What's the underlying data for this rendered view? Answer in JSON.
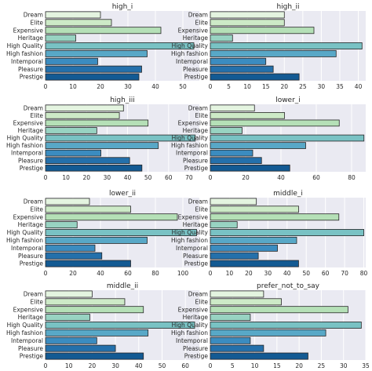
{
  "colors": [
    "#e4f4e0",
    "#cdeac7",
    "#b5e0b7",
    "#98d3c2",
    "#79c2c4",
    "#58a8c7",
    "#3b8cc0",
    "#2470ab",
    "#135a93"
  ],
  "chart_data": [
    {
      "type": "bar",
      "orientation": "horizontal",
      "title": "high_i",
      "categories": [
        "Dream",
        "Elite",
        "Expensive",
        "Heritage",
        "High Quality",
        "High fashion",
        "Intemporal",
        "Pleasure",
        "Prestige"
      ],
      "values": [
        20,
        24,
        42,
        11,
        54,
        37,
        19,
        35,
        34
      ],
      "xlim": [
        0,
        56
      ],
      "xticks": [
        0,
        10,
        20,
        30,
        40,
        50
      ]
    },
    {
      "type": "bar",
      "orientation": "horizontal",
      "title": "high_ii",
      "categories": [
        "Dream",
        "Elite",
        "Expensive",
        "Heritage",
        "High Quality",
        "High fashion",
        "Intemporal",
        "Pleasure",
        "Prestige"
      ],
      "values": [
        20,
        20,
        28,
        6,
        41,
        34,
        15,
        17,
        24
      ],
      "xlim": [
        0,
        42
      ],
      "xticks": [
        0,
        5,
        10,
        15,
        20,
        25,
        30,
        35,
        40
      ]
    },
    {
      "type": "bar",
      "orientation": "horizontal",
      "title": "high_iii",
      "categories": [
        "Dream",
        "Elite",
        "Expensive",
        "Heritage",
        "High Quality",
        "High fashion",
        "Intemporal",
        "Pleasure",
        "Prestige"
      ],
      "values": [
        38,
        36,
        50,
        25,
        73,
        55,
        27,
        41,
        47
      ],
      "xlim": [
        0,
        75
      ],
      "xticks": [
        0,
        10,
        20,
        30,
        40,
        50,
        60,
        70
      ]
    },
    {
      "type": "bar",
      "orientation": "horizontal",
      "title": "lower_i",
      "categories": [
        "Dream",
        "Elite",
        "Expensive",
        "Heritage",
        "High Quality",
        "High fashion",
        "Intemporal",
        "Pleasure",
        "Prestige"
      ],
      "values": [
        25,
        42,
        73,
        18,
        87,
        54,
        24,
        29,
        45
      ],
      "xlim": [
        0,
        88
      ],
      "xticks": [
        0,
        20,
        40,
        60,
        80
      ]
    },
    {
      "type": "bar",
      "orientation": "horizontal",
      "title": "lower_ii",
      "categories": [
        "Dream",
        "Elite",
        "Expensive",
        "Heritage",
        "High Quality",
        "High fashion",
        "Intemporal",
        "Pleasure",
        "Prestige"
      ],
      "values": [
        32,
        62,
        96,
        23,
        110,
        74,
        36,
        41,
        62
      ],
      "xlim": [
        0,
        112
      ],
      "xticks": [
        0,
        20,
        40,
        60,
        80,
        100
      ]
    },
    {
      "type": "bar",
      "orientation": "horizontal",
      "title": "middle_i",
      "categories": [
        "Dream",
        "Elite",
        "Expensive",
        "Heritage",
        "High Quality",
        "High fashion",
        "Intemporal",
        "Pleasure",
        "Prestige"
      ],
      "values": [
        24,
        46,
        67,
        14,
        80,
        45,
        35,
        25,
        46
      ],
      "xlim": [
        0,
        81
      ],
      "xticks": [
        0,
        10,
        20,
        30,
        40,
        50,
        60,
        70,
        80
      ]
    },
    {
      "type": "bar",
      "orientation": "horizontal",
      "title": "middle_ii",
      "categories": [
        "Dream",
        "Elite",
        "Expensive",
        "Heritage",
        "High Quality",
        "High fashion",
        "Intemporal",
        "Pleasure",
        "Prestige"
      ],
      "values": [
        20,
        34,
        42,
        19,
        64,
        44,
        22,
        30,
        42
      ],
      "xlim": [
        0,
        66
      ],
      "xticks": [
        0,
        10,
        20,
        30,
        40,
        50,
        60
      ]
    },
    {
      "type": "bar",
      "orientation": "horizontal",
      "title": "prefer_not_to_say",
      "categories": [
        "Dream",
        "Elite",
        "Expensive",
        "Heritage",
        "High Quality",
        "High fashion",
        "Intemporal",
        "Pleasure",
        "Prestige"
      ],
      "values": [
        12,
        16,
        31,
        9,
        34,
        26,
        9,
        12,
        22
      ],
      "xlim": [
        0,
        35
      ],
      "xticks": [
        0,
        5,
        10,
        15,
        20,
        25,
        30,
        35
      ]
    }
  ]
}
